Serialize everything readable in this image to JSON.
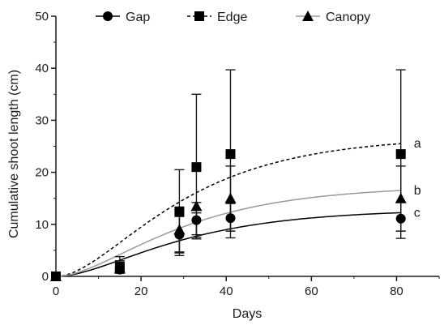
{
  "chart_data": {
    "type": "scatter",
    "title": "",
    "xlabel": "Days",
    "ylabel": "Cumulative shoot length (cm)",
    "xlim": [
      0,
      90
    ],
    "ylim": [
      0,
      50
    ],
    "xticks": [
      "0",
      "20",
      "40",
      "60",
      "80"
    ],
    "yticks": [
      "0",
      "10",
      "20",
      "30",
      "40",
      "50"
    ],
    "grid": false,
    "legend": "top",
    "x": [
      0,
      15,
      29,
      33,
      41,
      81
    ],
    "series": [
      {
        "name": "Gap",
        "marker": "circle",
        "line_style": "solid",
        "line_color": "#000000",
        "values": [
          0,
          1.3,
          8.0,
          10.8,
          11.2,
          11.1
        ],
        "error_upper": [
          0,
          1.7,
          12.8,
          12.2,
          14.0,
          14.2
        ],
        "error_lower": [
          0,
          0.6,
          4.0,
          7.2,
          7.4,
          7.3
        ],
        "fit_asymptote": 12.9,
        "fit_k": 0.045,
        "end_label": "c"
      },
      {
        "name": "Edge",
        "marker": "square",
        "line_style": "dashed",
        "line_color": "#000000",
        "values": [
          0,
          1.9,
          12.5,
          21.0,
          23.5,
          23.5
        ],
        "error_upper": [
          0,
          3.8,
          20.5,
          35.0,
          39.7,
          39.7
        ],
        "error_lower": [
          0,
          0.8,
          4.7,
          7.5,
          8.7,
          8.7
        ],
        "fit_asymptote": 26.9,
        "fit_k": 0.045,
        "end_label": "a"
      },
      {
        "name": "Canopy",
        "marker": "triangle",
        "line_style": "solid",
        "line_color": "#999999",
        "values": [
          0,
          1.6,
          9.0,
          13.5,
          15.0,
          15.0
        ],
        "error_upper": [
          0,
          3.0,
          11.5,
          14.2,
          21.2,
          21.2
        ],
        "error_lower": [
          0,
          0.6,
          4.5,
          8.0,
          8.7,
          8.7
        ],
        "fit_asymptote": 17.4,
        "fit_k": 0.045,
        "end_label": "b"
      }
    ]
  }
}
